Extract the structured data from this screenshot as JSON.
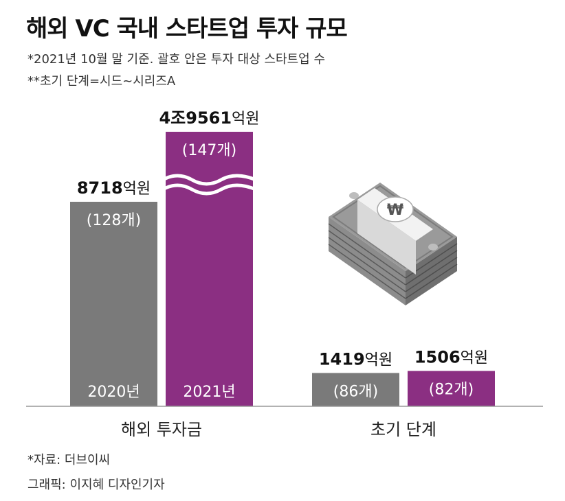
{
  "title": "해외 VC 국내 스타트업 투자 규모",
  "notes": [
    "*2021년 10월 말 기준. 괄호 안은 투자 대상 스타트업 수",
    "**초기 단계=시드~시리즈A"
  ],
  "colors": {
    "year2020": "#7a7a7a",
    "year2021": "#8b2f82"
  },
  "chart_data": {
    "type": "bar",
    "title": "해외 VC 국내 스타트업 투자 규모",
    "unit": "억원",
    "count_unit": "개",
    "categories": [
      "해외 투자금",
      "초기 단계"
    ],
    "series": [
      {
        "name": "2020년",
        "values": [
          8718,
          1419
        ],
        "labels": [
          "8718",
          "1419"
        ],
        "counts": [
          128,
          86
        ]
      },
      {
        "name": "2021년",
        "values": [
          49561,
          1506
        ],
        "labels": [
          "4조9561",
          "1506"
        ],
        "counts": [
          147,
          82
        ]
      }
    ],
    "axis_break": true,
    "xlabel": "",
    "ylabel": ""
  },
  "footer": {
    "source": "*자료: 더브이씨",
    "credit": "그래픽: 이지혜 디자인기자"
  }
}
